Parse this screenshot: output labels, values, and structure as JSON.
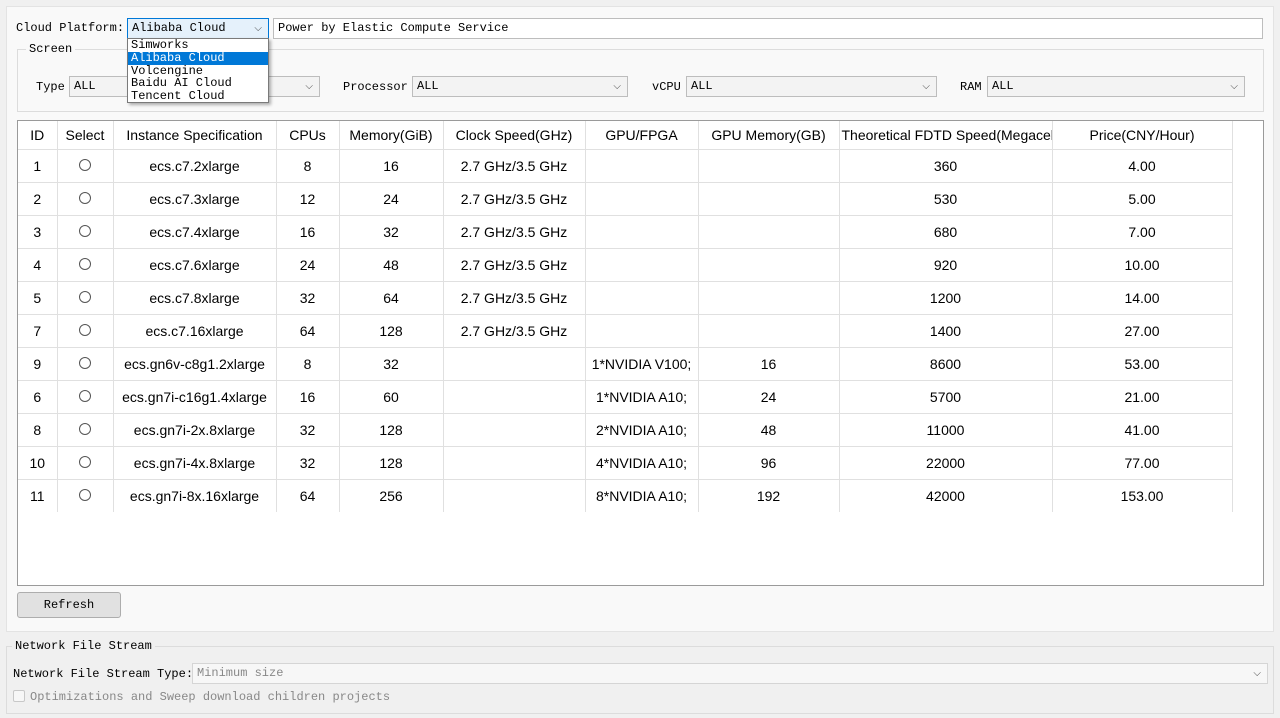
{
  "cloud_platform": {
    "label": "Cloud Platform:",
    "selected": "Alibaba Cloud",
    "description": "Power by Elastic Compute Service",
    "options": [
      "Simworks",
      "Alibaba Cloud",
      "Volcengine",
      "Baidu AI Cloud",
      "Tencent Cloud"
    ]
  },
  "screen": {
    "title": "Screen",
    "filters": [
      {
        "label": "Type",
        "value": "ALL"
      },
      {
        "label": "Processor",
        "value": "ALL"
      },
      {
        "label": "vCPU",
        "value": "ALL"
      },
      {
        "label": "RAM",
        "value": "ALL"
      }
    ]
  },
  "table": {
    "columns": [
      "ID",
      "Select",
      "Instance Specification",
      "CPUs",
      "Memory(GiB)",
      "Clock Speed(GHz)",
      "GPU/FPGA",
      "GPU Memory(GB)",
      "Theoretical FDTD Speed(Megacells/s)",
      "Price(CNY/Hour)"
    ],
    "rows": [
      [
        "1",
        "",
        "ecs.c7.2xlarge",
        "8",
        "16",
        "2.7 GHz/3.5 GHz",
        "",
        "",
        "360",
        "4.00"
      ],
      [
        "2",
        "",
        "ecs.c7.3xlarge",
        "12",
        "24",
        "2.7 GHz/3.5 GHz",
        "",
        "",
        "530",
        "5.00"
      ],
      [
        "3",
        "",
        "ecs.c7.4xlarge",
        "16",
        "32",
        "2.7 GHz/3.5 GHz",
        "",
        "",
        "680",
        "7.00"
      ],
      [
        "4",
        "",
        "ecs.c7.6xlarge",
        "24",
        "48",
        "2.7 GHz/3.5 GHz",
        "",
        "",
        "920",
        "10.00"
      ],
      [
        "5",
        "",
        "ecs.c7.8xlarge",
        "32",
        "64",
        "2.7 GHz/3.5 GHz",
        "",
        "",
        "1200",
        "14.00"
      ],
      [
        "7",
        "",
        "ecs.c7.16xlarge",
        "64",
        "128",
        "2.7 GHz/3.5 GHz",
        "",
        "",
        "1400",
        "27.00"
      ],
      [
        "9",
        "",
        "ecs.gn6v-c8g1.2xlarge",
        "8",
        "32",
        "",
        "1*NVIDIA V100;",
        "16",
        "8600",
        "53.00"
      ],
      [
        "6",
        "",
        "ecs.gn7i-c16g1.4xlarge",
        "16",
        "60",
        "",
        "1*NVIDIA A10;",
        "24",
        "5700",
        "21.00"
      ],
      [
        "8",
        "",
        "ecs.gn7i-2x.8xlarge",
        "32",
        "128",
        "",
        "2*NVIDIA A10;",
        "48",
        "11000",
        "41.00"
      ],
      [
        "10",
        "",
        "ecs.gn7i-4x.8xlarge",
        "32",
        "128",
        "",
        "4*NVIDIA A10;",
        "96",
        "22000",
        "77.00"
      ],
      [
        "11",
        "",
        "ecs.gn7i-8x.16xlarge",
        "64",
        "256",
        "",
        "8*NVIDIA A10;",
        "192",
        "42000",
        "153.00"
      ]
    ]
  },
  "refresh_label": "Refresh",
  "network": {
    "title": "Network File Stream",
    "type_label": "Network File Stream Type:",
    "type_value": "Minimum size",
    "checkbox_label": "Optimizations and Sweep download children projects"
  }
}
